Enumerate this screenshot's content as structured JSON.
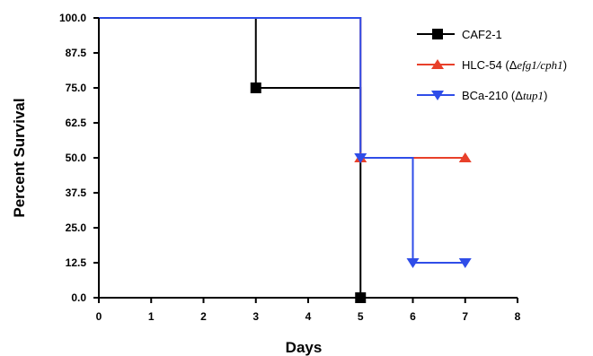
{
  "chart_data": {
    "type": "line",
    "step": true,
    "xlabel": "Days",
    "ylabel": "Percent Survival",
    "xlim": [
      0,
      8
    ],
    "ylim": [
      0,
      100
    ],
    "x_ticks": [
      0,
      1,
      2,
      3,
      4,
      5,
      6,
      7,
      8
    ],
    "x_tick_labels": [
      "0",
      "1",
      "2",
      "3",
      "4",
      "5",
      "6",
      "7",
      "8"
    ],
    "y_ticks": [
      0,
      12.5,
      25,
      37.5,
      50,
      62.5,
      75,
      87.5,
      100
    ],
    "y_tick_labels": [
      "0.0",
      "12.5",
      "25.0",
      "37.5",
      "50.0",
      "62.5",
      "75.0",
      "87.5",
      "100.0"
    ],
    "grid": false,
    "legend_position": "top-right",
    "series": [
      {
        "name": "CAF2-1",
        "legend_parts": [
          {
            "text": "CAF2-1",
            "italic": false
          }
        ],
        "color": "#000000",
        "marker": "square",
        "points": [
          [
            0,
            100
          ],
          [
            3,
            75
          ],
          [
            5,
            0
          ]
        ]
      },
      {
        "name": "HLC-54 (Δefg1/cph1)",
        "legend_parts": [
          {
            "text": "HLC-54 (Δ",
            "italic": false
          },
          {
            "text": "efg1/cph1",
            "italic": true
          },
          {
            "text": ")",
            "italic": false
          }
        ],
        "color": "#e8402a",
        "marker": "triangle-up",
        "points": [
          [
            0,
            100
          ],
          [
            5,
            50
          ],
          [
            7,
            50
          ]
        ]
      },
      {
        "name": "BCa-210 (Δtup1)",
        "legend_parts": [
          {
            "text": "BCa-210 (Δ",
            "italic": false
          },
          {
            "text": "tup1",
            "italic": true
          },
          {
            "text": ")",
            "italic": false
          }
        ],
        "color": "#2f4de8",
        "marker": "triangle-down",
        "points": [
          [
            0,
            100
          ],
          [
            5,
            50
          ],
          [
            6,
            12.5
          ],
          [
            7,
            12.5
          ]
        ]
      }
    ]
  }
}
